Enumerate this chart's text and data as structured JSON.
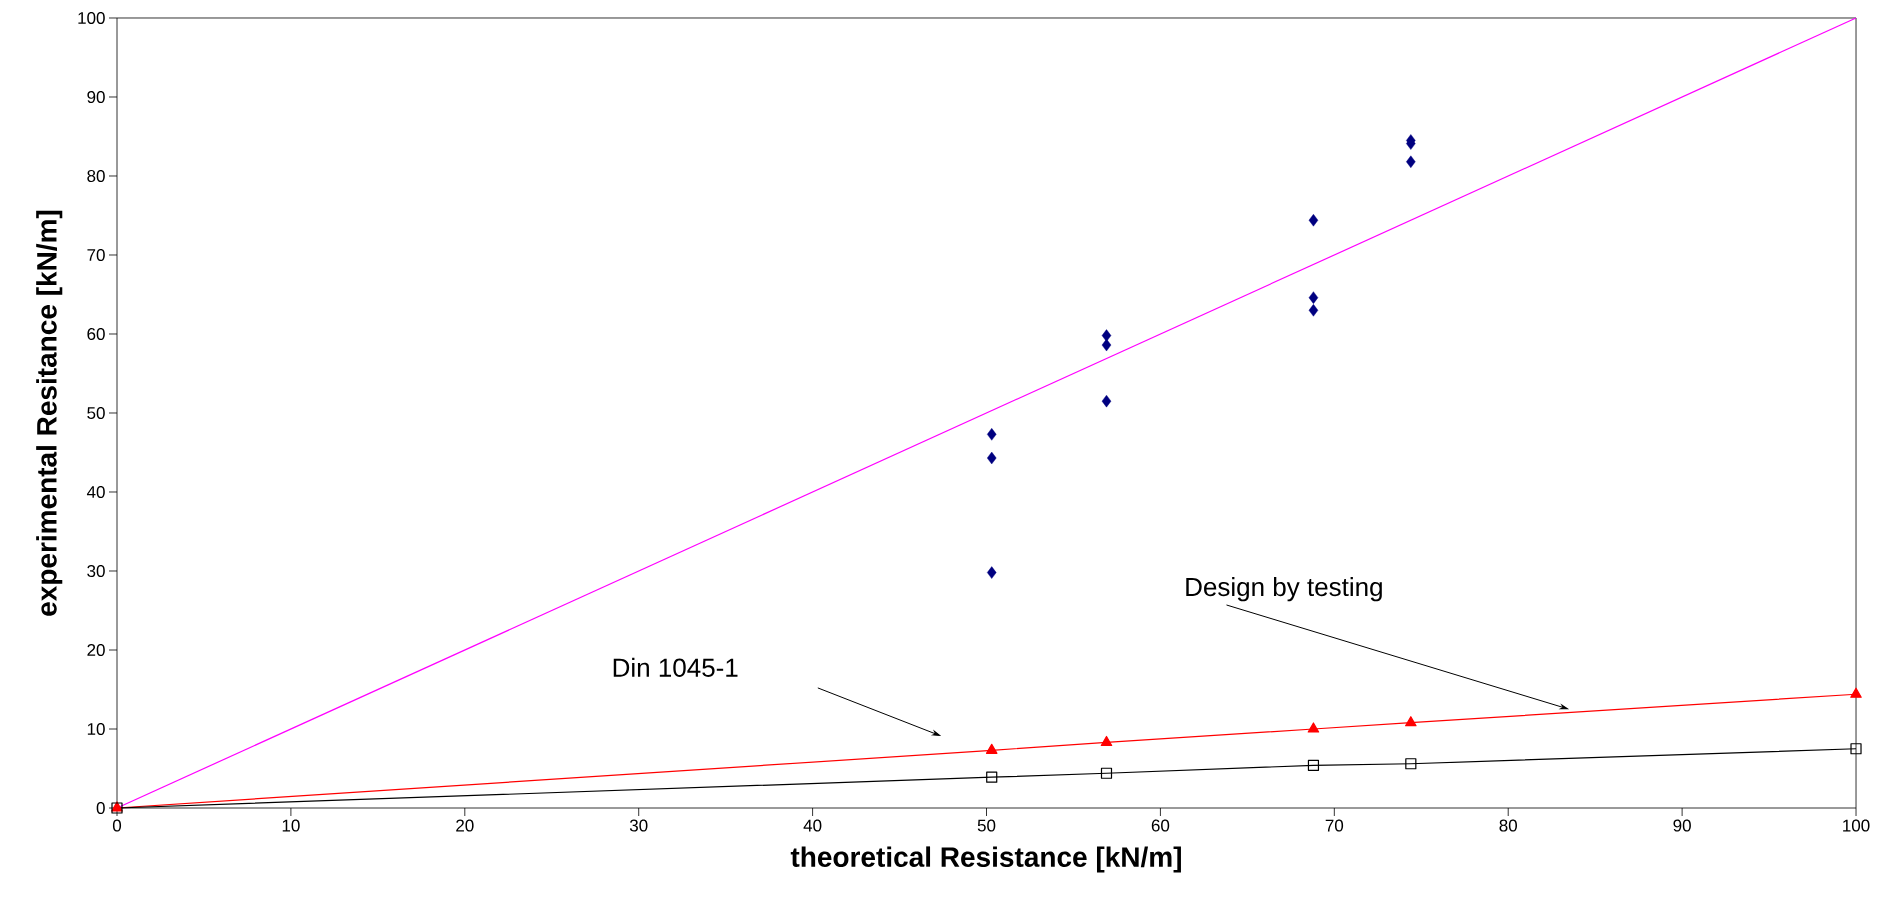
{
  "chart_data": {
    "type": "scatter",
    "xlabel": "theoretical Resistance [kN/m]",
    "ylabel": "experimental Resitance [kN/m]",
    "xlim": [
      0,
      100
    ],
    "ylim": [
      0,
      100
    ],
    "xticks": [
      0,
      10,
      20,
      30,
      40,
      50,
      60,
      70,
      80,
      90,
      100
    ],
    "yticks": [
      0,
      10,
      20,
      30,
      40,
      50,
      60,
      70,
      80,
      90,
      100
    ],
    "series": [
      {
        "marker": "diamond",
        "color": "#000080",
        "x": [
          50.3,
          50.3,
          50.3,
          56.9,
          56.9,
          56.9,
          68.8,
          68.8,
          68.8,
          74.4,
          74.4,
          74.4
        ],
        "values": [
          47.3,
          44.3,
          29.8,
          59.8,
          58.6,
          51.5,
          74.4,
          64.6,
          63.0,
          84.5,
          84.1,
          81.8
        ]
      },
      {
        "type": "line",
        "marker": "none",
        "color": "#ff00ff",
        "x": [
          0,
          100
        ],
        "values": [
          0,
          100
        ]
      },
      {
        "type": "line",
        "marker": "triangle",
        "color": "#ff0000",
        "x": [
          0,
          50.3,
          56.9,
          68.8,
          74.4,
          100
        ],
        "values": [
          0,
          7.3,
          8.3,
          10.0,
          10.8,
          14.4
        ]
      },
      {
        "type": "line",
        "marker": "square",
        "color": "#000000",
        "x": [
          0,
          50.3,
          56.9,
          68.8,
          74.4,
          100
        ],
        "values": [
          0,
          3.9,
          4.4,
          5.4,
          5.6,
          7.5
        ]
      }
    ],
    "annotations": [
      {
        "text": "Design by testing",
        "x": 83.5,
        "y": 12.5
      },
      "Din 1045-1"
    ]
  }
}
